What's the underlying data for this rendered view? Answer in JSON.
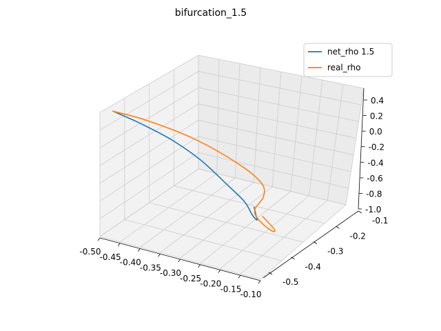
{
  "chart_data": {
    "type": "line3d",
    "title": "bifurcation_1.5",
    "xlim": [
      -0.5,
      -0.1
    ],
    "ylim": [
      -0.5,
      -0.1
    ],
    "zlim": [
      -1.0,
      0.4
    ],
    "x_ticks": [
      "-0.50",
      "-0.45",
      "-0.40",
      "-0.35",
      "-0.30",
      "-0.25",
      "-0.20",
      "-0.15",
      "-0.10"
    ],
    "y_ticks": [
      "-0.5",
      "-0.4",
      "-0.3",
      "-0.2",
      "-0.1"
    ],
    "z_ticks": [
      "0.4",
      "0.2",
      "0.0",
      "-0.2",
      "-0.4",
      "-0.6",
      "-0.8",
      "-1.0"
    ],
    "legend_position": "top-right",
    "grid": true,
    "series": [
      {
        "name": "net_rho 1.5",
        "color": "#1f77b4",
        "points": [
          {
            "x": -0.48,
            "y": -0.12,
            "z": 0.4
          },
          {
            "x": -0.42,
            "y": -0.13,
            "z": 0.32
          },
          {
            "x": -0.36,
            "y": -0.16,
            "z": 0.15
          },
          {
            "x": -0.31,
            "y": -0.2,
            "z": -0.1
          },
          {
            "x": -0.27,
            "y": -0.24,
            "z": -0.4
          },
          {
            "x": -0.25,
            "y": -0.28,
            "z": -0.65
          },
          {
            "x": -0.25,
            "y": -0.31,
            "z": -0.85
          },
          {
            "x": -0.25,
            "y": -0.33,
            "z": -0.95
          },
          {
            "x": -0.27,
            "y": -0.36,
            "z": -0.99
          },
          {
            "x": -0.3,
            "y": -0.4,
            "z": -1.0
          }
        ]
      },
      {
        "name": "real_rho",
        "color": "#ff7f0e",
        "points": [
          {
            "x": -0.48,
            "y": -0.12,
            "z": 0.4
          },
          {
            "x": -0.38,
            "y": -0.1,
            "z": 0.45
          },
          {
            "x": -0.26,
            "y": -0.1,
            "z": 0.38
          },
          {
            "x": -0.17,
            "y": -0.13,
            "z": 0.15
          },
          {
            "x": -0.14,
            "y": -0.17,
            "z": -0.1
          },
          {
            "x": -0.16,
            "y": -0.21,
            "z": -0.35
          },
          {
            "x": -0.2,
            "y": -0.24,
            "z": -0.6
          },
          {
            "x": -0.21,
            "y": -0.27,
            "z": -0.78
          },
          {
            "x": -0.19,
            "y": -0.29,
            "z": -0.92
          },
          {
            "x": -0.2,
            "y": -0.32,
            "z": -0.98
          },
          {
            "x": -0.26,
            "y": -0.37,
            "z": -1.0
          }
        ]
      }
    ]
  }
}
